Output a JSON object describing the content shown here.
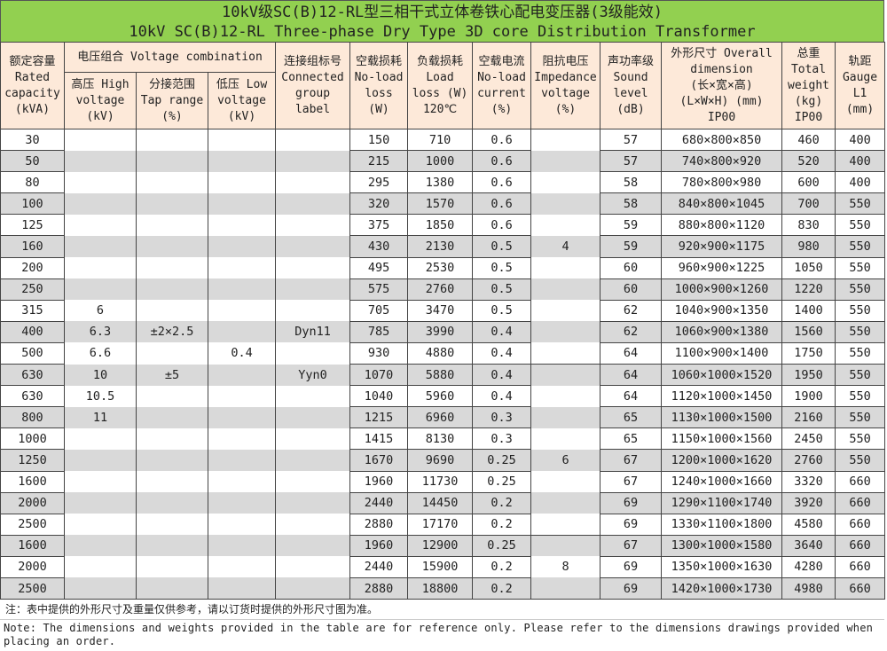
{
  "title": {
    "cn": "10kV级SC(B)12-RL型三相干式立体卷铁心配电变压器(3级能效)",
    "en": "10kV SC(B)12-RL Three-phase Dry Type 3D core Distribution Transformer"
  },
  "colors": {
    "title_bg": "#92d050",
    "header_bg": "#fde9d9",
    "stripe": "#d9d9d9"
  },
  "headers": {
    "capacity": [
      "额定容量",
      "Rated",
      "capacity",
      "(kVA)"
    ],
    "voltage_group": "电压组合 Voltage combination",
    "hv": [
      "高压 High",
      "voltage",
      "(kV)"
    ],
    "tap": [
      "分接范围",
      "Tap range",
      "(%)"
    ],
    "lv": [
      "低压 Low",
      "voltage",
      "(kV)"
    ],
    "group": [
      "连接组标号",
      "Connected",
      "group",
      "label"
    ],
    "noload": [
      "空载损耗",
      "No-load",
      "loss",
      "(W)"
    ],
    "load": [
      "负载损耗",
      "Load",
      "loss (W)",
      "120℃"
    ],
    "current": [
      "空载电流",
      "No-load",
      "current",
      "(%)"
    ],
    "impedance": [
      "阻抗电压",
      "Impedance",
      "voltage",
      "(%)"
    ],
    "sound": [
      "声功率级",
      "Sound",
      "level",
      "(dB)"
    ],
    "dim": [
      "外形尺寸 Overall",
      "dimension",
      "(长×宽×高)",
      "(L×W×H) (mm)",
      "IP00"
    ],
    "weight": [
      "总重",
      "Total",
      "weight",
      "(kg)",
      "IP00"
    ],
    "gauge": [
      "轨距",
      "Gauge",
      "L1",
      "(mm)"
    ]
  },
  "rows": [
    {
      "capacity": "30",
      "hv": "",
      "tap": "",
      "lv": "",
      "group": "",
      "noload": "150",
      "load": "710",
      "current": "0.6",
      "impedance": "",
      "sound": "57",
      "dim": "680×800×850",
      "weight": "460",
      "gauge": "400"
    },
    {
      "capacity": "50",
      "hv": "",
      "tap": "",
      "lv": "",
      "group": "",
      "noload": "215",
      "load": "1000",
      "current": "0.6",
      "impedance": "",
      "sound": "57",
      "dim": "740×800×920",
      "weight": "520",
      "gauge": "400"
    },
    {
      "capacity": "80",
      "hv": "",
      "tap": "",
      "lv": "",
      "group": "",
      "noload": "295",
      "load": "1380",
      "current": "0.6",
      "impedance": "",
      "sound": "58",
      "dim": "780×800×980",
      "weight": "600",
      "gauge": "400"
    },
    {
      "capacity": "100",
      "hv": "",
      "tap": "",
      "lv": "",
      "group": "",
      "noload": "320",
      "load": "1570",
      "current": "0.6",
      "impedance": "",
      "sound": "58",
      "dim": "840×800×1045",
      "weight": "700",
      "gauge": "550"
    },
    {
      "capacity": "125",
      "hv": "",
      "tap": "",
      "lv": "",
      "group": "",
      "noload": "375",
      "load": "1850",
      "current": "0.6",
      "impedance": "",
      "sound": "59",
      "dim": "880×800×1120",
      "weight": "830",
      "gauge": "550"
    },
    {
      "capacity": "160",
      "hv": "",
      "tap": "",
      "lv": "",
      "group": "",
      "noload": "430",
      "load": "2130",
      "current": "0.5",
      "impedance": "4",
      "sound": "59",
      "dim": "920×900×1175",
      "weight": "980",
      "gauge": "550"
    },
    {
      "capacity": "200",
      "hv": "",
      "tap": "",
      "lv": "",
      "group": "",
      "noload": "495",
      "load": "2530",
      "current": "0.5",
      "impedance": "",
      "sound": "60",
      "dim": "960×900×1225",
      "weight": "1050",
      "gauge": "550"
    },
    {
      "capacity": "250",
      "hv": "",
      "tap": "",
      "lv": "",
      "group": "",
      "noload": "575",
      "load": "2760",
      "current": "0.5",
      "impedance": "",
      "sound": "60",
      "dim": "1000×900×1260",
      "weight": "1220",
      "gauge": "550"
    },
    {
      "capacity": "315",
      "hv": "6",
      "tap": "",
      "lv": "",
      "group": "",
      "noload": "705",
      "load": "3470",
      "current": "0.5",
      "impedance": "",
      "sound": "62",
      "dim": "1040×900×1350",
      "weight": "1400",
      "gauge": "550"
    },
    {
      "capacity": "400",
      "hv": "6.3",
      "tap": "±2×2.5",
      "lv": "",
      "group": "Dyn11",
      "noload": "785",
      "load": "3990",
      "current": "0.4",
      "impedance": "",
      "sound": "62",
      "dim": "1060×900×1380",
      "weight": "1560",
      "gauge": "550"
    },
    {
      "capacity": "500",
      "hv": "6.6",
      "tap": "",
      "lv": "0.4",
      "group": "",
      "noload": "930",
      "load": "4880",
      "current": "0.4",
      "impedance": "",
      "sound": "64",
      "dim": "1100×900×1400",
      "weight": "1750",
      "gauge": "550"
    },
    {
      "capacity": "630",
      "hv": "10",
      "tap": "±5",
      "lv": "",
      "group": "Yyn0",
      "noload": "1070",
      "load": "5880",
      "current": "0.4",
      "impedance": "",
      "sound": "64",
      "dim": "1060×1000×1520",
      "weight": "1950",
      "gauge": "550"
    },
    {
      "capacity": "630",
      "hv": "10.5",
      "tap": "",
      "lv": "",
      "group": "",
      "noload": "1040",
      "load": "5960",
      "current": "0.4",
      "impedance": "",
      "sound": "64",
      "dim": "1120×1000×1450",
      "weight": "1900",
      "gauge": "550"
    },
    {
      "capacity": "800",
      "hv": "11",
      "tap": "",
      "lv": "",
      "group": "",
      "noload": "1215",
      "load": "6960",
      "current": "0.3",
      "impedance": "",
      "sound": "65",
      "dim": "1130×1000×1500",
      "weight": "2160",
      "gauge": "550"
    },
    {
      "capacity": "1000",
      "hv": "",
      "tap": "",
      "lv": "",
      "group": "",
      "noload": "1415",
      "load": "8130",
      "current": "0.3",
      "impedance": "",
      "sound": "65",
      "dim": "1150×1000×1560",
      "weight": "2450",
      "gauge": "550"
    },
    {
      "capacity": "1250",
      "hv": "",
      "tap": "",
      "lv": "",
      "group": "",
      "noload": "1670",
      "load": "9690",
      "current": "0.25",
      "impedance": "6",
      "sound": "67",
      "dim": "1200×1000×1620",
      "weight": "2760",
      "gauge": "550"
    },
    {
      "capacity": "1600",
      "hv": "",
      "tap": "",
      "lv": "",
      "group": "",
      "noload": "1960",
      "load": "11730",
      "current": "0.25",
      "impedance": "",
      "sound": "67",
      "dim": "1240×1000×1660",
      "weight": "3320",
      "gauge": "660"
    },
    {
      "capacity": "2000",
      "hv": "",
      "tap": "",
      "lv": "",
      "group": "",
      "noload": "2440",
      "load": "14450",
      "current": "0.2",
      "impedance": "",
      "sound": "69",
      "dim": "1290×1100×1740",
      "weight": "3920",
      "gauge": "660"
    },
    {
      "capacity": "2500",
      "hv": "",
      "tap": "",
      "lv": "",
      "group": "",
      "noload": "2880",
      "load": "17170",
      "current": "0.2",
      "impedance": "",
      "sound": "69",
      "dim": "1330×1100×1800",
      "weight": "4580",
      "gauge": "660"
    },
    {
      "capacity": "1600",
      "hv": "",
      "tap": "",
      "lv": "",
      "group": "",
      "noload": "1960",
      "load": "12900",
      "current": "0.25",
      "impedance": "",
      "sound": "67",
      "dim": "1300×1000×1580",
      "weight": "3640",
      "gauge": "660"
    },
    {
      "capacity": "2000",
      "hv": "",
      "tap": "",
      "lv": "",
      "group": "",
      "noload": "2440",
      "load": "15900",
      "current": "0.2",
      "impedance": "8",
      "sound": "69",
      "dim": "1350×1000×1630",
      "weight": "4280",
      "gauge": "660"
    },
    {
      "capacity": "2500",
      "hv": "",
      "tap": "",
      "lv": "",
      "group": "",
      "noload": "2880",
      "load": "18800",
      "current": "0.2",
      "impedance": "",
      "sound": "69",
      "dim": "1420×1000×1730",
      "weight": "4980",
      "gauge": "660"
    }
  ],
  "notes": {
    "cn": "注：表中提供的外形尺寸及重量仅供参考，请以订货时提供的外形尺寸图为准。",
    "en": "Note: The dimensions and weights provided in the table are for reference only. Please refer to the dimensions drawings provided when placing an order."
  }
}
